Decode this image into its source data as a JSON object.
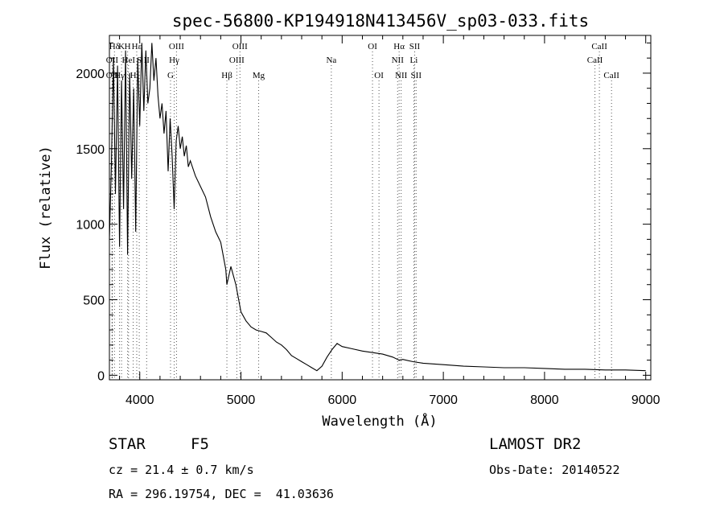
{
  "chart_data": {
    "type": "line",
    "title": "spec-56800-KP194918N413456V_sp03-033.fits",
    "xlabel": "Wavelength (Å)",
    "ylabel": "Flux (relative)",
    "xlim": [
      3700,
      9050
    ],
    "ylim": [
      -30,
      2250
    ],
    "x_ticks": [
      4000,
      5000,
      6000,
      7000,
      8000,
      9000
    ],
    "y_ticks": [
      0,
      500,
      1000,
      1500,
      2000
    ],
    "grid": false,
    "series": [
      {
        "x": [
          3700,
          3720,
          3740,
          3760,
          3780,
          3800,
          3820,
          3840,
          3860,
          3880,
          3900,
          3920,
          3940,
          3960,
          3980,
          4000,
          4020,
          4040,
          4060,
          4080,
          4100,
          4120,
          4140,
          4160,
          4180,
          4200,
          4220,
          4240,
          4260,
          4280,
          4300,
          4320,
          4340,
          4360,
          4380,
          4400,
          4420,
          4440,
          4460,
          4480,
          4500,
          4550,
          4600,
          4650,
          4700,
          4750,
          4800,
          4850,
          4861,
          4900,
          4950,
          5000,
          5050,
          5100,
          5150,
          5200,
          5250,
          5300,
          5350,
          5400,
          5450,
          5500,
          5550,
          5600,
          5650,
          5700,
          5750,
          5800,
          5850,
          5900,
          5950,
          6000,
          6100,
          6200,
          6300,
          6400,
          6500,
          6563,
          6600,
          6700,
          6800,
          6900,
          7000,
          7200,
          7400,
          7600,
          7800,
          8000,
          8200,
          8400,
          8600,
          8800,
          9000
        ],
        "y": [
          900,
          1400,
          2100,
          1200,
          2050,
          850,
          1950,
          1100,
          2150,
          800,
          2000,
          1300,
          1900,
          950,
          2100,
          1650,
          2200,
          1750,
          2150,
          1800,
          1900,
          2200,
          1950,
          2100,
          1850,
          1700,
          1800,
          1600,
          1750,
          1350,
          1700,
          1450,
          1100,
          1550,
          1650,
          1500,
          1580,
          1450,
          1520,
          1380,
          1420,
          1320,
          1250,
          1180,
          1050,
          950,
          880,
          700,
          600,
          720,
          600,
          420,
          360,
          320,
          300,
          290,
          280,
          250,
          220,
          200,
          170,
          130,
          110,
          90,
          70,
          50,
          30,
          60,
          120,
          170,
          210,
          190,
          175,
          160,
          150,
          140,
          120,
          100,
          105,
          90,
          80,
          75,
          70,
          60,
          55,
          50,
          50,
          45,
          40,
          40,
          35,
          35,
          30
        ]
      }
    ],
    "line_markers": [
      {
        "label": "Hδ",
        "x": 3750,
        "row": 0
      },
      {
        "label": "K",
        "x": 3820,
        "row": 0
      },
      {
        "label": "H",
        "x": 3880,
        "row": 0
      },
      {
        "label": "Hε",
        "x": 3970,
        "row": 0
      },
      {
        "label": "OII",
        "x": 3727,
        "row": 1
      },
      {
        "label": "HeI",
        "x": 3889,
        "row": 1
      },
      {
        "label": "S",
        "x": 3995,
        "row": 1
      },
      {
        "label": "II",
        "x": 4068,
        "row": 1
      },
      {
        "label": "OII",
        "x": 3727,
        "row": 2
      },
      {
        "label": "Hγ",
        "x": 3800,
        "row": 2
      },
      {
        "label": "H",
        "x": 3935,
        "row": 2
      },
      {
        "label": "OIII",
        "x": 4363,
        "row": 0
      },
      {
        "label": "Hγ",
        "x": 4340,
        "row": 1
      },
      {
        "label": "G",
        "x": 4304,
        "row": 2
      },
      {
        "label": "OIII",
        "x": 4990,
        "row": 0
      },
      {
        "label": "OIII",
        "x": 4959,
        "row": 1
      },
      {
        "label": "Hβ",
        "x": 4861,
        "row": 2
      },
      {
        "label": "Mg",
        "x": 5175,
        "row": 2
      },
      {
        "label": "Na",
        "x": 5893,
        "row": 1
      },
      {
        "label": "OI",
        "x": 6300,
        "row": 0
      },
      {
        "label": "OI",
        "x": 6364,
        "row": 2
      },
      {
        "label": "Hα",
        "x": 6563,
        "row": 0
      },
      {
        "label": "SII",
        "x": 6717,
        "row": 0
      },
      {
        "label": "NII",
        "x": 6548,
        "row": 1
      },
      {
        "label": "Li",
        "x": 6708,
        "row": 1
      },
      {
        "label": "NII",
        "x": 6583,
        "row": 2
      },
      {
        "label": "SII",
        "x": 6731,
        "row": 2
      },
      {
        "label": "CaII",
        "x": 8542,
        "row": 0
      },
      {
        "label": "CaII",
        "x": 8498,
        "row": 1
      },
      {
        "label": "CaII",
        "x": 8662,
        "row": 2
      }
    ]
  },
  "info": {
    "object_class": "STAR",
    "subclass": "F5",
    "survey": "LAMOST DR2",
    "cz": "cz = 21.4 ± 0.7 km/s",
    "obs_date": "Obs-Date: 20140522",
    "coords": "RA = 296.19754, DEC =  41.03636"
  }
}
